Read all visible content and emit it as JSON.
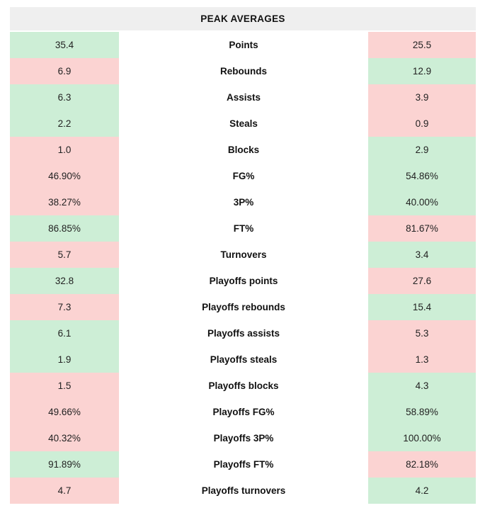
{
  "table": {
    "title": "PEAK AVERAGES",
    "rows": [
      {
        "label": "Points",
        "left": "35.4",
        "left_state": "better",
        "right": "25.5",
        "right_state": "worse"
      },
      {
        "label": "Rebounds",
        "left": "6.9",
        "left_state": "worse",
        "right": "12.9",
        "right_state": "better"
      },
      {
        "label": "Assists",
        "left": "6.3",
        "left_state": "better",
        "right": "3.9",
        "right_state": "worse"
      },
      {
        "label": "Steals",
        "left": "2.2",
        "left_state": "better",
        "right": "0.9",
        "right_state": "worse"
      },
      {
        "label": "Blocks",
        "left": "1.0",
        "left_state": "worse",
        "right": "2.9",
        "right_state": "better"
      },
      {
        "label": "FG%",
        "left": "46.90%",
        "left_state": "worse",
        "right": "54.86%",
        "right_state": "better"
      },
      {
        "label": "3P%",
        "left": "38.27%",
        "left_state": "worse",
        "right": "40.00%",
        "right_state": "better"
      },
      {
        "label": "FT%",
        "left": "86.85%",
        "left_state": "better",
        "right": "81.67%",
        "right_state": "worse"
      },
      {
        "label": "Turnovers",
        "left": "5.7",
        "left_state": "worse",
        "right": "3.4",
        "right_state": "better"
      },
      {
        "label": "Playoffs points",
        "left": "32.8",
        "left_state": "better",
        "right": "27.6",
        "right_state": "worse"
      },
      {
        "label": "Playoffs rebounds",
        "left": "7.3",
        "left_state": "worse",
        "right": "15.4",
        "right_state": "better"
      },
      {
        "label": "Playoffs assists",
        "left": "6.1",
        "left_state": "better",
        "right": "5.3",
        "right_state": "worse"
      },
      {
        "label": "Playoffs steals",
        "left": "1.9",
        "left_state": "better",
        "right": "1.3",
        "right_state": "worse"
      },
      {
        "label": "Playoffs blocks",
        "left": "1.5",
        "left_state": "worse",
        "right": "4.3",
        "right_state": "better"
      },
      {
        "label": "Playoffs FG%",
        "left": "49.66%",
        "left_state": "worse",
        "right": "58.89%",
        "right_state": "better"
      },
      {
        "label": "Playoffs 3P%",
        "left": "40.32%",
        "left_state": "worse",
        "right": "100.00%",
        "right_state": "better"
      },
      {
        "label": "Playoffs FT%",
        "left": "91.89%",
        "left_state": "better",
        "right": "82.18%",
        "right_state": "worse"
      },
      {
        "label": "Playoffs turnovers",
        "left": "4.7",
        "left_state": "worse",
        "right": "4.2",
        "right_state": "better"
      }
    ]
  },
  "colors": {
    "better": "#cdeed6",
    "worse": "#fbd3d2",
    "header_bg": "#efefef"
  },
  "chart_data": {
    "type": "table",
    "title": "PEAK AVERAGES",
    "categories": [
      "Points",
      "Rebounds",
      "Assists",
      "Steals",
      "Blocks",
      "FG%",
      "3P%",
      "FT%",
      "Turnovers",
      "Playoffs points",
      "Playoffs rebounds",
      "Playoffs assists",
      "Playoffs steals",
      "Playoffs blocks",
      "Playoffs FG%",
      "Playoffs 3P%",
      "Playoffs FT%",
      "Playoffs turnovers"
    ],
    "series": [
      {
        "name": "left player",
        "values": [
          35.4,
          6.9,
          6.3,
          2.2,
          1.0,
          46.9,
          38.27,
          86.85,
          5.7,
          32.8,
          7.3,
          6.1,
          1.9,
          1.5,
          49.66,
          40.32,
          91.89,
          4.7
        ]
      },
      {
        "name": "right player",
        "values": [
          25.5,
          12.9,
          3.9,
          0.9,
          2.9,
          54.86,
          40.0,
          81.67,
          3.4,
          27.6,
          15.4,
          5.3,
          1.3,
          4.3,
          58.89,
          100.0,
          82.18,
          4.2
        ]
      }
    ],
    "highlighting": "green cell = better value for that stat, red cell = worse value (lower is better for turnovers)"
  }
}
